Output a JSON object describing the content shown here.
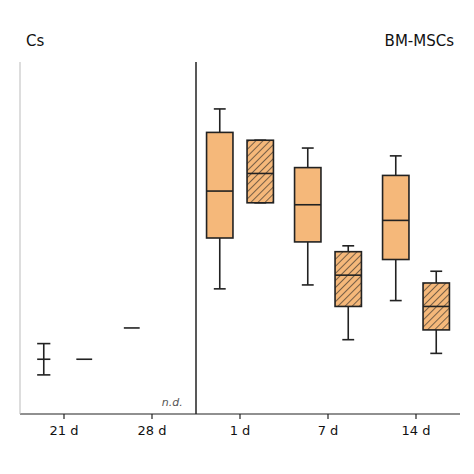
{
  "chart_data": [
    {
      "type": "box",
      "title": "Cs",
      "categories": [
        "21 d",
        "28 d"
      ],
      "ylim": [
        0.0,
        0.9
      ],
      "tick_labels": "x",
      "series": [
        {
          "type": "whisker",
          "values": [
            {
              "low": 0.1,
              "median": 0.14,
              "high": 0.18
            },
            null
          ]
        },
        {
          "type": "median",
          "values": [
            0.14,
            0.22
          ]
        }
      ],
      "annotations": [
        {
          "text": "n.d.",
          "category": "28 d"
        }
      ]
    },
    {
      "type": "box",
      "title": "BM-MSCs",
      "categories": [
        "1 d",
        "7 d",
        "14 d"
      ],
      "ylim": [
        0.0,
        0.9
      ],
      "tick_labels": "x",
      "series": [
        {
          "type": "box",
          "color": "#f5b87a",
          "values": [
            {
              "low": 0.32,
              "q1": 0.45,
              "median": 0.57,
              "q3": 0.72,
              "high": 0.78
            },
            {
              "low": 0.33,
              "q1": 0.44,
              "median": 0.535,
              "q3": 0.63,
              "high": 0.68
            },
            {
              "low": 0.29,
              "q1": 0.395,
              "median": 0.495,
              "q3": 0.61,
              "high": 0.66
            }
          ]
        },
        {
          "type": "box",
          "color": "#f5b87a",
          "marker": "hatch",
          "values": [
            {
              "low": 0.54,
              "q1": 0.54,
              "median": 0.615,
              "q3": 0.7,
              "high": 0.7
            },
            {
              "low": 0.19,
              "q1": 0.275,
              "median": 0.355,
              "q3": 0.415,
              "high": 0.43
            },
            {
              "low": 0.155,
              "q1": 0.215,
              "median": 0.275,
              "q3": 0.335,
              "high": 0.365
            }
          ]
        }
      ]
    }
  ]
}
